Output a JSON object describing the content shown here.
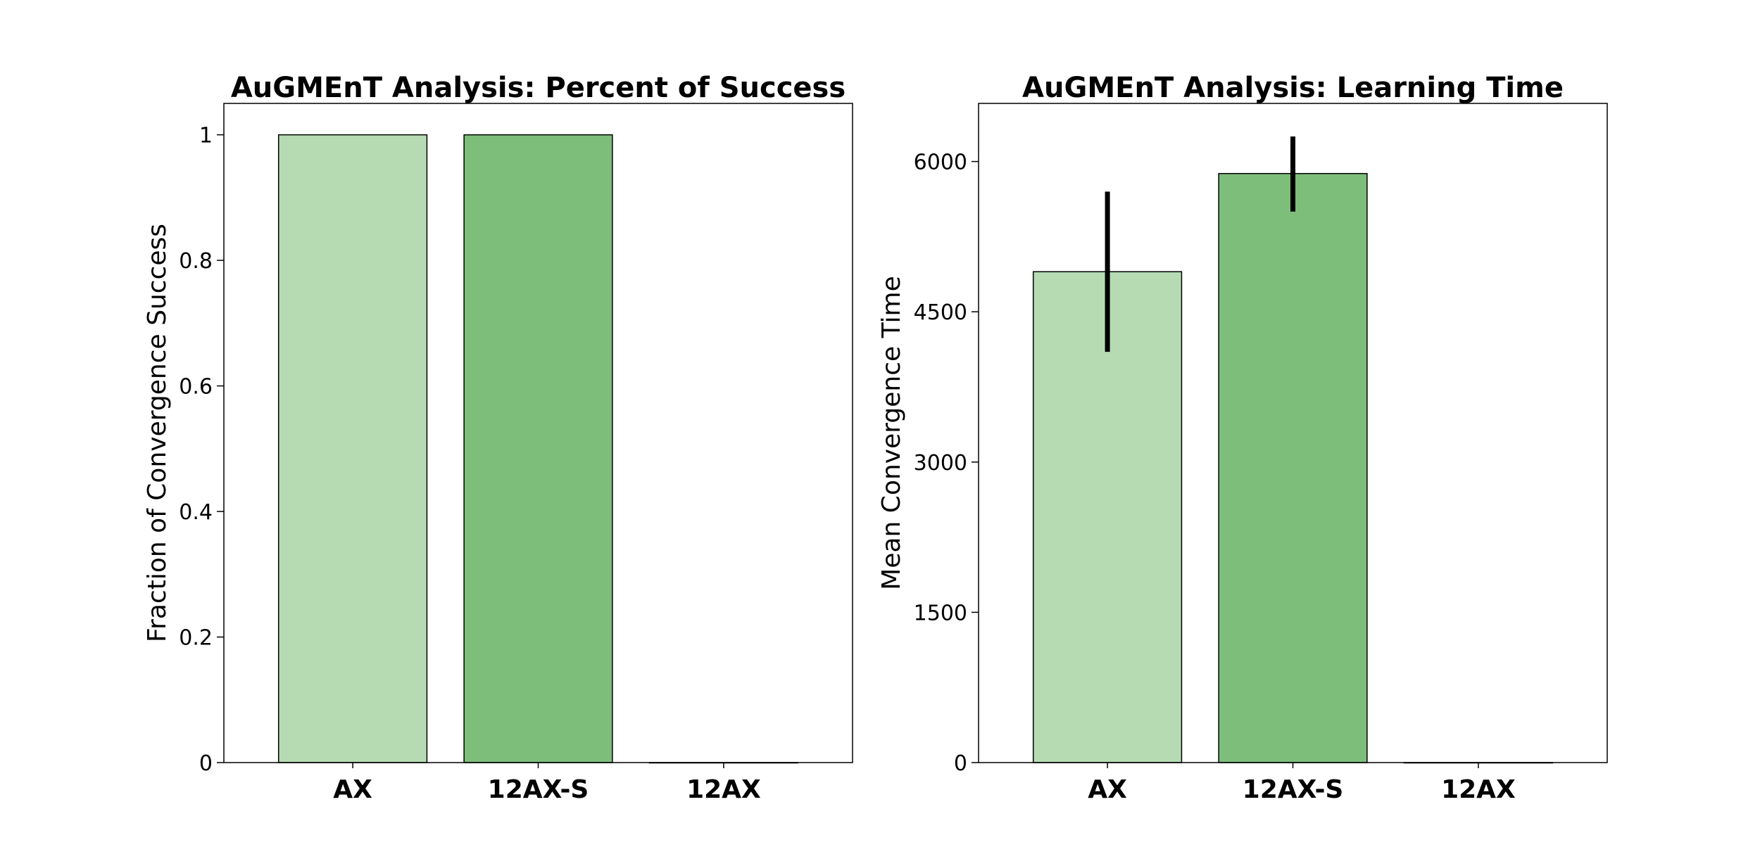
{
  "chart_data": [
    {
      "type": "bar",
      "title": "AuGMEnT Analysis: Percent of Success",
      "xlabel": "",
      "ylabel": "Fraction of Convergence Success",
      "categories": [
        "AX",
        "12AX-S",
        "12AX"
      ],
      "values": [
        1,
        1,
        0
      ],
      "colors": [
        "#b6dbb3",
        "#7dbe7b",
        "#7dbe7b"
      ],
      "ylim": [
        0,
        1.05
      ],
      "yticks": [
        0,
        0.2,
        0.4,
        0.6,
        0.8,
        1
      ],
      "ytick_labels": [
        "0",
        "0.2",
        "0.4",
        "0.6",
        "0.8",
        "1"
      ],
      "grid": false
    },
    {
      "type": "bar",
      "title": "AuGMEnT Analysis: Learning Time",
      "xlabel": "",
      "ylabel": "Mean Convergence Time",
      "categories": [
        "AX",
        "12AX-S",
        "12AX"
      ],
      "values": [
        4900,
        5880,
        0
      ],
      "error": [
        [
          4100,
          5700
        ],
        [
          5500,
          6250
        ],
        null
      ],
      "colors": [
        "#b6dbb3",
        "#7dbe7b",
        "#7dbe7b"
      ],
      "ylim": [
        0,
        6580
      ],
      "yticks": [
        0,
        1500,
        3000,
        4500,
        6000
      ],
      "ytick_labels": [
        "0",
        "1500",
        "3000",
        "4500",
        "6000"
      ],
      "grid": false
    }
  ]
}
